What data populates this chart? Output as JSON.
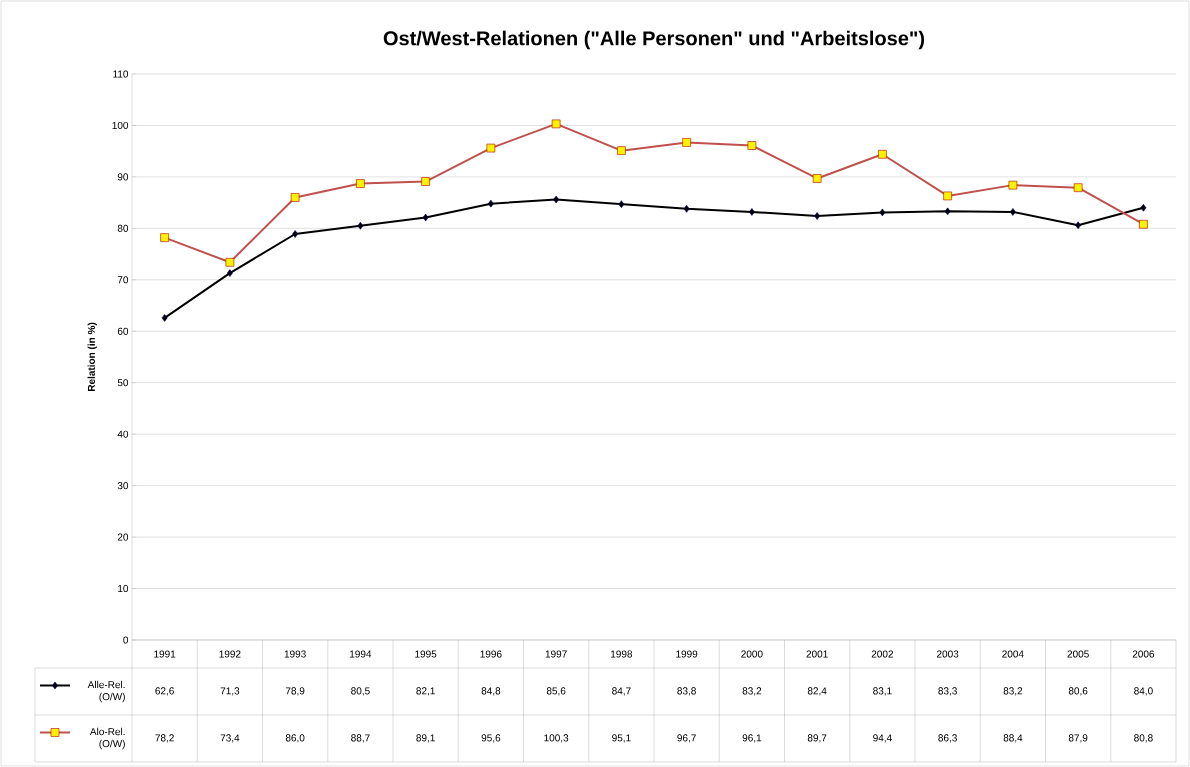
{
  "chart_data": {
    "type": "line",
    "title": "Ost/West-Relationen (\"Alle Personen\" und \"Arbeitslose\")",
    "ylabel": "Relation (in %)",
    "categories": [
      "1991",
      "1992",
      "1993",
      "1994",
      "1995",
      "1996",
      "1997",
      "1998",
      "1999",
      "2000",
      "2001",
      "2002",
      "2003",
      "2004",
      "2005",
      "2006"
    ],
    "series": [
      {
        "name": "Alle-Rel. (O/W)",
        "color": "#000000",
        "marker": "diamond",
        "values": [
          62.6,
          71.3,
          78.9,
          80.5,
          82.1,
          84.8,
          85.6,
          84.7,
          83.8,
          83.2,
          82.4,
          83.1,
          83.3,
          83.2,
          80.6,
          84.0
        ],
        "value_labels": [
          "62,6",
          "71,3",
          "78,9",
          "80,5",
          "82,1",
          "84,8",
          "85,6",
          "84,7",
          "83,8",
          "83,2",
          "82,4",
          "83,1",
          "83,3",
          "83,2",
          "80,6",
          "84,0"
        ]
      },
      {
        "name": "Alo-Rel. (O/W)",
        "color": "#c0504d",
        "marker": "square",
        "values": [
          78.2,
          73.4,
          86.0,
          88.7,
          89.1,
          95.6,
          100.3,
          95.1,
          96.7,
          96.1,
          89.7,
          94.4,
          86.3,
          88.4,
          87.9,
          80.8
        ],
        "value_labels": [
          "78,2",
          "73,4",
          "86,0",
          "88,7",
          "89,1",
          "95,6",
          "100,3",
          "95,1",
          "96,7",
          "96,1",
          "89,7",
          "94,4",
          "86,3",
          "88,4",
          "87,9",
          "80,8"
        ]
      }
    ],
    "ylim": [
      0,
      110
    ],
    "yticks": [
      0,
      10,
      20,
      30,
      40,
      50,
      60,
      70,
      80,
      90,
      100,
      110
    ],
    "grid": "y",
    "legend": "bottom"
  }
}
